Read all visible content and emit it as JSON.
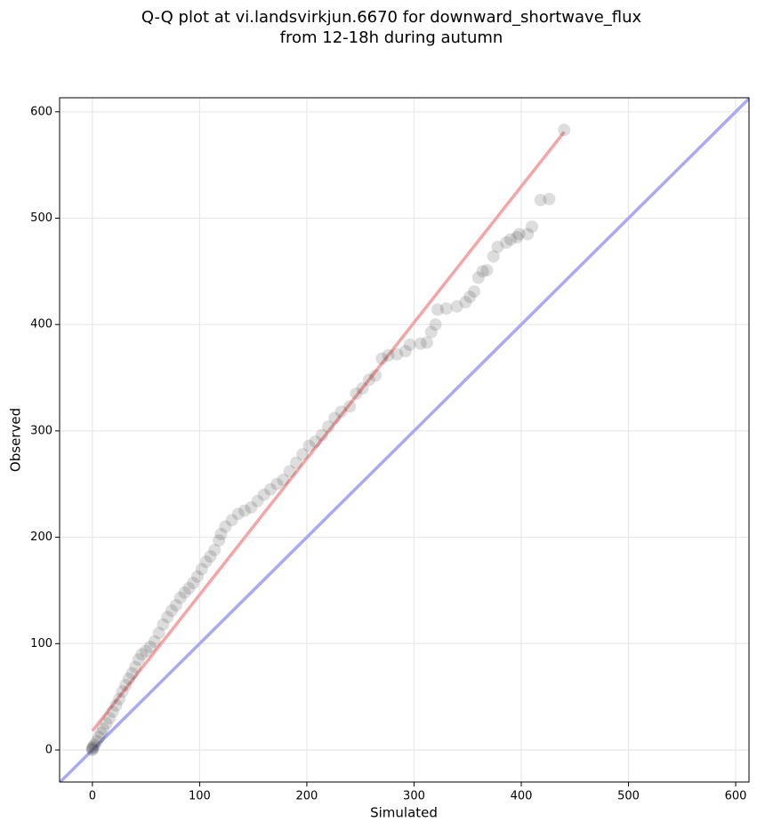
{
  "chart_data": {
    "type": "scatter",
    "title": [
      "Q-Q plot at vi.landsvirkjun.6670 for downward_shortwave_flux",
      "from 12-18h during autumn"
    ],
    "xlabel": "Simulated",
    "ylabel": "Observed",
    "x": [
      0,
      0,
      0,
      1,
      2,
      4,
      6,
      8,
      10,
      13,
      16,
      19,
      22,
      25,
      28,
      31,
      34,
      37,
      40,
      43,
      46,
      50,
      54,
      58,
      62,
      66,
      70,
      74,
      78,
      82,
      86,
      90,
      94,
      98,
      102,
      106,
      110,
      114,
      118,
      120,
      124,
      130,
      136,
      142,
      148,
      154,
      160,
      166,
      172,
      178,
      184,
      190,
      196,
      202,
      208,
      214,
      220,
      226,
      232,
      240,
      246,
      252,
      258,
      264,
      270,
      276,
      284,
      292,
      296,
      306,
      312,
      316,
      320,
      322,
      330,
      340,
      348,
      352,
      356,
      360,
      364,
      368,
      374,
      378,
      386,
      390,
      396,
      398,
      406,
      410,
      418,
      426,
      440
    ],
    "values": [
      0,
      1,
      2,
      3,
      5,
      8,
      12,
      16,
      20,
      25,
      30,
      36,
      42,
      48,
      55,
      61,
      67,
      72,
      78,
      85,
      90,
      93,
      97,
      102,
      110,
      118,
      125,
      131,
      136,
      143,
      148,
      152,
      157,
      163,
      170,
      177,
      182,
      188,
      197,
      203,
      210,
      216,
      222,
      225,
      228,
      234,
      240,
      245,
      250,
      254,
      262,
      270,
      278,
      286,
      290,
      296,
      304,
      312,
      318,
      323,
      335,
      340,
      348,
      352,
      368,
      371,
      372,
      375,
      381,
      382,
      383,
      393,
      400,
      414,
      415,
      417,
      421,
      426,
      431,
      444,
      450,
      451,
      464,
      473,
      477,
      480,
      482,
      485,
      485,
      492,
      517,
      518,
      583
    ],
    "color": "#333333",
    "fit_line": {
      "x": [
        0,
        440
      ],
      "values": [
        18,
        581
      ],
      "color": "#f5a5a5"
    },
    "identity_line": {
      "x": [
        -30.6,
        612.4
      ],
      "values": [
        -30.6,
        612.4
      ],
      "color": "#a9a9f5"
    },
    "xlim": [
      -30.6,
      612.4
    ],
    "ylim": [
      -30.1,
      613.2
    ],
    "xticks": [
      0,
      100,
      200,
      300,
      400,
      500,
      600
    ],
    "yticks": [
      0,
      100,
      200,
      300,
      400,
      500,
      600
    ],
    "grid": true
  }
}
